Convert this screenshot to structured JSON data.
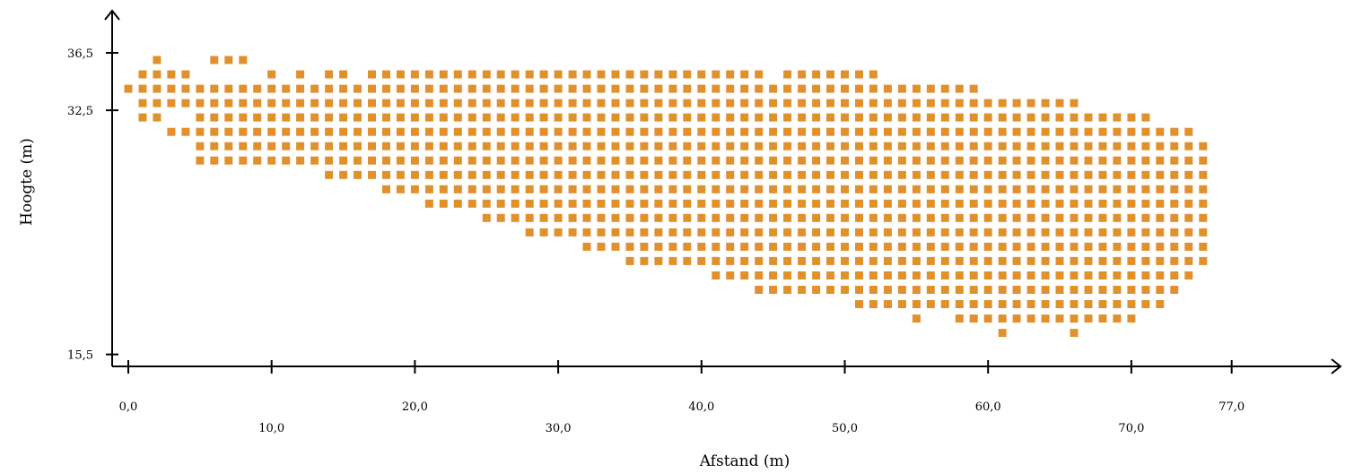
{
  "chart_data": {
    "type": "scatter",
    "marker": "square",
    "color": "#E0912E",
    "xlabel": "Afstand (m)",
    "ylabel": "Hoogte (m)",
    "xlim": [
      0,
      77
    ],
    "ylim": [
      15.5,
      36.5
    ],
    "x_step": 1,
    "y_step": 1,
    "x_ticks": [
      "0,0",
      "10,0",
      "20,0",
      "30,0",
      "40,0",
      "50,0",
      "60,0",
      "70,0",
      "77,0"
    ],
    "y_ticks": [
      "15,5",
      "32,5",
      "36,5"
    ],
    "columns": [
      {
        "x": 0,
        "y": [
          34
        ]
      },
      {
        "x": 1,
        "y": [
          32,
          33,
          34,
          35
        ]
      },
      {
        "x": 2,
        "y": [
          32,
          33,
          34,
          35,
          36
        ]
      },
      {
        "x": 3,
        "y": [
          31,
          33,
          34,
          35
        ]
      },
      {
        "x": 4,
        "y": [
          31,
          33,
          34,
          35
        ]
      },
      {
        "x": 5,
        "y": [
          29,
          30,
          31,
          32,
          33,
          34
        ]
      },
      {
        "x": 6,
        "y": [
          29,
          30,
          31,
          32,
          33,
          34,
          36
        ]
      },
      {
        "x": 7,
        "y": [
          29,
          30,
          31,
          32,
          33,
          34,
          36
        ]
      },
      {
        "x": 8,
        "y": [
          29,
          30,
          31,
          32,
          33,
          34,
          36
        ]
      },
      {
        "x": 9,
        "y": [
          29,
          30,
          31,
          32,
          33,
          34
        ]
      },
      {
        "x": 10,
        "y": [
          29,
          30,
          31,
          32,
          33,
          34,
          35
        ]
      },
      {
        "x": 11,
        "y": [
          29,
          30,
          31,
          32,
          33,
          34
        ]
      },
      {
        "x": 12,
        "y": [
          29,
          30,
          31,
          32,
          33,
          34,
          35
        ]
      },
      {
        "x": 13,
        "y": [
          29,
          30,
          31,
          32,
          33,
          34
        ]
      },
      {
        "x": 14,
        "y": [
          28,
          29,
          30,
          31,
          32,
          33,
          34,
          35
        ]
      },
      {
        "x": 15,
        "y": [
          28,
          29,
          30,
          31,
          32,
          33,
          34,
          35
        ]
      },
      {
        "x": 16,
        "y": [
          28,
          29,
          30,
          31,
          32,
          33,
          34
        ]
      },
      {
        "x": 17,
        "y": [
          28,
          29,
          30,
          31,
          32,
          33,
          34,
          35
        ]
      },
      {
        "x": 18,
        "y": [
          27,
          28,
          29,
          30,
          31,
          32,
          33,
          34,
          35
        ]
      },
      {
        "x": 19,
        "y": [
          27,
          28,
          29,
          30,
          31,
          32,
          33,
          34,
          35
        ]
      },
      {
        "x": 20,
        "y": [
          27,
          28,
          29,
          30,
          31,
          32,
          33,
          34,
          35
        ]
      },
      {
        "x": 21,
        "y": [
          26,
          27,
          28,
          29,
          30,
          31,
          32,
          33,
          34,
          35
        ]
      },
      {
        "x": 22,
        "y": [
          26,
          27,
          28,
          29,
          30,
          31,
          32,
          33,
          34,
          35
        ]
      },
      {
        "x": 23,
        "y": [
          26,
          27,
          28,
          29,
          30,
          31,
          32,
          33,
          34,
          35
        ]
      },
      {
        "x": 24,
        "y": [
          26,
          27,
          28,
          29,
          30,
          31,
          32,
          33,
          34,
          35
        ]
      },
      {
        "x": 25,
        "y": [
          25,
          26,
          27,
          28,
          29,
          30,
          31,
          32,
          33,
          34,
          35
        ]
      },
      {
        "x": 26,
        "y": [
          25,
          26,
          27,
          28,
          29,
          30,
          31,
          32,
          33,
          34,
          35
        ]
      },
      {
        "x": 27,
        "y": [
          25,
          26,
          27,
          28,
          29,
          30,
          31,
          32,
          33,
          34,
          35
        ]
      },
      {
        "x": 28,
        "y": [
          24,
          25,
          26,
          27,
          28,
          29,
          30,
          31,
          32,
          33,
          34,
          35
        ]
      },
      {
        "x": 29,
        "y": [
          24,
          25,
          26,
          27,
          28,
          29,
          30,
          31,
          32,
          33,
          34,
          35
        ]
      },
      {
        "x": 30,
        "y": [
          24,
          25,
          26,
          27,
          28,
          29,
          30,
          31,
          32,
          33,
          34,
          35
        ]
      },
      {
        "x": 31,
        "y": [
          24,
          25,
          26,
          27,
          28,
          29,
          30,
          31,
          32,
          33,
          34,
          35
        ]
      },
      {
        "x": 32,
        "y": [
          23,
          24,
          25,
          26,
          27,
          28,
          29,
          30,
          31,
          32,
          33,
          34,
          35
        ]
      },
      {
        "x": 33,
        "y": [
          23,
          24,
          25,
          26,
          27,
          28,
          29,
          30,
          31,
          32,
          33,
          34,
          35
        ]
      },
      {
        "x": 34,
        "y": [
          23,
          24,
          25,
          26,
          27,
          28,
          29,
          30,
          31,
          32,
          33,
          34,
          35
        ]
      },
      {
        "x": 35,
        "y": [
          22,
          23,
          24,
          25,
          26,
          27,
          28,
          29,
          30,
          31,
          32,
          33,
          34,
          35
        ]
      },
      {
        "x": 36,
        "y": [
          22,
          23,
          24,
          25,
          26,
          27,
          28,
          29,
          30,
          31,
          32,
          33,
          34,
          35
        ]
      },
      {
        "x": 37,
        "y": [
          22,
          23,
          24,
          25,
          26,
          27,
          28,
          29,
          30,
          31,
          32,
          33,
          34,
          35
        ]
      },
      {
        "x": 38,
        "y": [
          22,
          23,
          24,
          25,
          26,
          27,
          28,
          29,
          30,
          31,
          32,
          33,
          34,
          35
        ]
      },
      {
        "x": 39,
        "y": [
          22,
          23,
          24,
          25,
          26,
          27,
          28,
          29,
          30,
          31,
          32,
          33,
          34,
          35
        ]
      },
      {
        "x": 40,
        "y": [
          22,
          23,
          24,
          25,
          26,
          27,
          28,
          29,
          30,
          31,
          32,
          33,
          34,
          35
        ]
      },
      {
        "x": 41,
        "y": [
          21,
          22,
          23,
          24,
          25,
          26,
          27,
          28,
          29,
          30,
          31,
          32,
          33,
          34,
          35
        ]
      },
      {
        "x": 42,
        "y": [
          21,
          22,
          23,
          24,
          25,
          26,
          27,
          28,
          29,
          30,
          31,
          32,
          33,
          34,
          35
        ]
      },
      {
        "x": 43,
        "y": [
          21,
          22,
          23,
          24,
          25,
          26,
          27,
          28,
          29,
          30,
          31,
          32,
          33,
          34,
          35
        ]
      },
      {
        "x": 44,
        "y": [
          20,
          21,
          22,
          23,
          24,
          25,
          26,
          27,
          28,
          29,
          30,
          31,
          32,
          33,
          34,
          35
        ]
      },
      {
        "x": 45,
        "y": [
          20,
          21,
          22,
          23,
          24,
          25,
          26,
          27,
          28,
          29,
          30,
          31,
          32,
          33,
          34
        ]
      },
      {
        "x": 46,
        "y": [
          20,
          21,
          22,
          23,
          24,
          25,
          26,
          27,
          28,
          29,
          30,
          31,
          32,
          33,
          34,
          35
        ]
      },
      {
        "x": 47,
        "y": [
          20,
          21,
          22,
          23,
          24,
          25,
          26,
          27,
          28,
          29,
          30,
          31,
          32,
          33,
          34,
          35
        ]
      },
      {
        "x": 48,
        "y": [
          20,
          21,
          22,
          23,
          24,
          25,
          26,
          27,
          28,
          29,
          30,
          31,
          32,
          33,
          34,
          35
        ]
      },
      {
        "x": 49,
        "y": [
          20,
          21,
          22,
          23,
          24,
          25,
          26,
          27,
          28,
          29,
          30,
          31,
          32,
          33,
          34,
          35
        ]
      },
      {
        "x": 50,
        "y": [
          20,
          21,
          22,
          23,
          24,
          25,
          26,
          27,
          28,
          29,
          30,
          31,
          32,
          33,
          34,
          35
        ]
      },
      {
        "x": 51,
        "y": [
          19,
          20,
          21,
          22,
          23,
          24,
          25,
          26,
          27,
          28,
          29,
          30,
          31,
          32,
          33,
          34,
          35
        ]
      },
      {
        "x": 52,
        "y": [
          19,
          20,
          21,
          22,
          23,
          24,
          25,
          26,
          27,
          28,
          29,
          30,
          31,
          32,
          33,
          34,
          35
        ]
      },
      {
        "x": 53,
        "y": [
          19,
          20,
          21,
          22,
          23,
          24,
          25,
          26,
          27,
          28,
          29,
          30,
          31,
          32,
          33,
          34
        ]
      },
      {
        "x": 54,
        "y": [
          19,
          20,
          21,
          22,
          23,
          24,
          25,
          26,
          27,
          28,
          29,
          30,
          31,
          32,
          33,
          34
        ]
      },
      {
        "x": 55,
        "y": [
          18,
          19,
          20,
          21,
          22,
          23,
          24,
          25,
          26,
          27,
          28,
          29,
          30,
          31,
          32,
          33,
          34
        ]
      },
      {
        "x": 56,
        "y": [
          19,
          20,
          21,
          22,
          23,
          24,
          25,
          26,
          27,
          28,
          29,
          30,
          31,
          32,
          33,
          34
        ]
      },
      {
        "x": 57,
        "y": [
          19,
          20,
          21,
          22,
          23,
          24,
          25,
          26,
          27,
          28,
          29,
          30,
          31,
          32,
          33,
          34
        ]
      },
      {
        "x": 58,
        "y": [
          18,
          19,
          20,
          21,
          22,
          23,
          24,
          25,
          26,
          27,
          28,
          29,
          30,
          31,
          32,
          33,
          34
        ]
      },
      {
        "x": 59,
        "y": [
          18,
          19,
          20,
          21,
          22,
          23,
          24,
          25,
          26,
          27,
          28,
          29,
          30,
          31,
          32,
          33,
          34
        ]
      },
      {
        "x": 60,
        "y": [
          18,
          19,
          20,
          21,
          22,
          23,
          24,
          25,
          26,
          27,
          28,
          29,
          30,
          31,
          32,
          33
        ]
      },
      {
        "x": 61,
        "y": [
          17,
          18,
          19,
          20,
          21,
          22,
          23,
          24,
          25,
          26,
          27,
          28,
          29,
          30,
          31,
          32,
          33
        ]
      },
      {
        "x": 62,
        "y": [
          18,
          19,
          20,
          21,
          22,
          23,
          24,
          25,
          26,
          27,
          28,
          29,
          30,
          31,
          32,
          33
        ]
      },
      {
        "x": 63,
        "y": [
          18,
          19,
          20,
          21,
          22,
          23,
          24,
          25,
          26,
          27,
          28,
          29,
          30,
          31,
          32,
          33
        ]
      },
      {
        "x": 64,
        "y": [
          18,
          19,
          20,
          21,
          22,
          23,
          24,
          25,
          26,
          27,
          28,
          29,
          30,
          31,
          32,
          33
        ]
      },
      {
        "x": 65,
        "y": [
          18,
          19,
          20,
          21,
          22,
          23,
          24,
          25,
          26,
          27,
          28,
          29,
          30,
          31,
          32,
          33
        ]
      },
      {
        "x": 66,
        "y": [
          17,
          18,
          19,
          20,
          21,
          22,
          23,
          24,
          25,
          26,
          27,
          28,
          29,
          30,
          31,
          32,
          33
        ]
      },
      {
        "x": 67,
        "y": [
          18,
          19,
          20,
          21,
          22,
          23,
          24,
          25,
          26,
          27,
          28,
          29,
          30,
          31,
          32
        ]
      },
      {
        "x": 68,
        "y": [
          18,
          19,
          20,
          21,
          22,
          23,
          24,
          25,
          26,
          27,
          28,
          29,
          30,
          31,
          32
        ]
      },
      {
        "x": 69,
        "y": [
          18,
          19,
          20,
          21,
          22,
          23,
          24,
          25,
          26,
          27,
          28,
          29,
          30,
          31,
          32
        ]
      },
      {
        "x": 70,
        "y": [
          18,
          19,
          20,
          21,
          22,
          23,
          24,
          25,
          26,
          27,
          28,
          29,
          30,
          31,
          32
        ]
      },
      {
        "x": 71,
        "y": [
          19,
          20,
          21,
          22,
          23,
          24,
          25,
          26,
          27,
          28,
          29,
          30,
          31,
          32
        ]
      },
      {
        "x": 72,
        "y": [
          19,
          20,
          21,
          22,
          23,
          24,
          25,
          26,
          27,
          28,
          29,
          30,
          31
        ]
      },
      {
        "x": 73,
        "y": [
          20,
          21,
          22,
          23,
          24,
          25,
          26,
          27,
          28,
          29,
          30,
          31
        ]
      },
      {
        "x": 74,
        "y": [
          21,
          22,
          23,
          24,
          25,
          26,
          27,
          28,
          29,
          30,
          31
        ]
      },
      {
        "x": 75,
        "y": [
          22,
          23,
          24,
          25,
          26,
          27,
          28,
          29,
          30
        ]
      }
    ]
  }
}
